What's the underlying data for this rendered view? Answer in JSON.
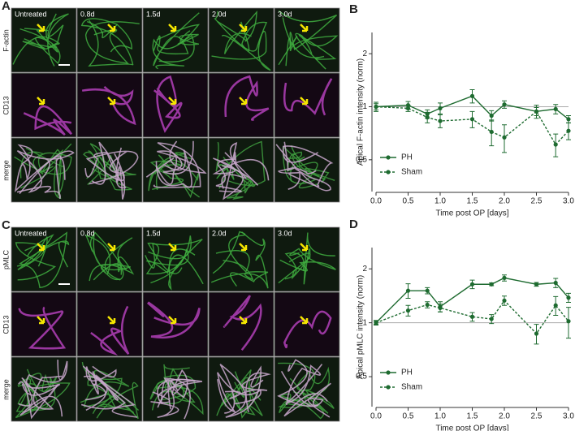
{
  "figure": {
    "panels": [
      {
        "label": "A",
        "columns": [
          "Untreated",
          "0.8d",
          "1.5d",
          "2.0d",
          "3.0d"
        ],
        "rows": [
          "F-actin",
          "CD13",
          "merge"
        ]
      },
      {
        "label": "C",
        "columns": [
          "Untreated",
          "0.8d",
          "1.5d",
          "2.0d",
          "3.0d"
        ],
        "rows": [
          "pMLC",
          "CD13",
          "merge"
        ]
      }
    ]
  },
  "chart_data": [
    {
      "type": "line",
      "label": "B",
      "ylabel": "Apical F-actin intensity (norm)",
      "xlabel": "Time post OP [days]",
      "x": [
        0,
        0.5,
        0.8,
        1.0,
        1.5,
        1.8,
        2.0,
        2.5,
        2.8,
        3.0
      ],
      "series": [
        {
          "name": "PH",
          "color": "#1e6b30",
          "dash": "solid",
          "values": [
            1.0,
            1.02,
            0.91,
            0.98,
            1.15,
            0.89,
            1.03,
            0.94,
            0.97,
            0.85
          ],
          "errors": [
            0.04,
            0.05,
            0.05,
            0.07,
            0.1,
            0.06,
            0.05,
            0.05,
            0.06,
            0.04
          ]
        },
        {
          "name": "Sham",
          "color": "#1e6b30",
          "dash": "dashed",
          "values": [
            1.0,
            0.98,
            0.87,
            0.83,
            0.85,
            0.72,
            0.67,
            0.94,
            0.61,
            0.73
          ],
          "errors": [
            0.06,
            0.04,
            0.06,
            0.07,
            0.09,
            0.12,
            0.12,
            0.08,
            0.09,
            0.08
          ]
        }
      ],
      "xlim": [
        0,
        3
      ],
      "xticks": [
        {
          "value": 0,
          "label": "0.0"
        },
        {
          "value": 0.5,
          "label": "0.5"
        },
        {
          "value": 1,
          "label": "1.0"
        },
        {
          "value": 1.5,
          "label": "1.5"
        },
        {
          "value": 2,
          "label": "2.0"
        },
        {
          "value": 2.5,
          "label": "2.5"
        },
        {
          "value": 3,
          "label": "3.0"
        }
      ],
      "ylog": true,
      "ylim": [
        0.33,
        2.64
      ],
      "yticks": [
        0.5,
        1,
        2
      ],
      "reference_line": 1,
      "legend": "lower left"
    },
    {
      "type": "line",
      "label": "D",
      "ylabel": "Apical pMLC intensity (norm)",
      "xlabel": "Time post OP [days]",
      "x": [
        0,
        0.5,
        0.8,
        1.0,
        1.5,
        1.8,
        2.0,
        2.5,
        2.8,
        3.0
      ],
      "series": [
        {
          "name": "PH",
          "color": "#1e6b30",
          "dash": "solid",
          "values": [
            1.0,
            1.51,
            1.51,
            1.23,
            1.64,
            1.64,
            1.78,
            1.64,
            1.67,
            1.38
          ],
          "errors": [
            0.02,
            0.14,
            0.06,
            0.08,
            0.09,
            0.03,
            0.07,
            0.04,
            0.1,
            0.08
          ]
        },
        {
          "name": "Sham",
          "color": "#1e6b30",
          "dash": "dashed",
          "values": [
            1.0,
            1.17,
            1.26,
            1.21,
            1.08,
            1.05,
            1.33,
            0.87,
            1.25,
            1.02
          ],
          "errors": [
            0.03,
            0.08,
            0.05,
            0.06,
            0.06,
            0.06,
            0.08,
            0.11,
            0.15,
            0.2
          ]
        }
      ],
      "xlim": [
        0,
        3
      ],
      "xticks": [
        {
          "value": 0,
          "label": "0.0"
        },
        {
          "value": 0.5,
          "label": "0.5"
        },
        {
          "value": 1,
          "label": "1.0"
        },
        {
          "value": 1.5,
          "label": "1.5"
        },
        {
          "value": 2,
          "label": "2.0"
        },
        {
          "value": 2.5,
          "label": "2.5"
        },
        {
          "value": 3,
          "label": "3.0"
        }
      ],
      "ylog": true,
      "ylim": [
        0.34,
        2.63
      ],
      "yticks": [
        0.5,
        1,
        2
      ],
      "reference_line": 1,
      "legend": "lower left"
    }
  ]
}
